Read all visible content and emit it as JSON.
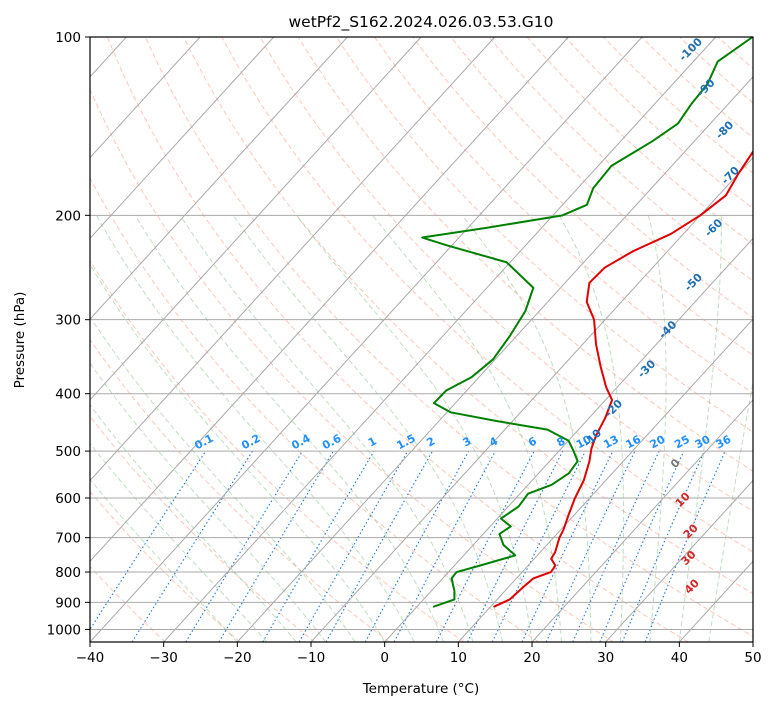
{
  "chart_data": {
    "type": "line",
    "chart_kind": "skew-T log-p diagram",
    "title": "wetPf2_S162.2024.026.03.53.G10",
    "xlabel": "Temperature (°C)",
    "ylabel": "Pressure (hPa)",
    "xlim": [
      -40,
      50
    ],
    "ylim": [
      1050,
      100
    ],
    "y_scale": "log",
    "grid": true,
    "x_ticks": [
      -40,
      -30,
      -20,
      -10,
      0,
      10,
      20,
      30,
      40,
      50
    ],
    "x_tick_labels": [
      "−40",
      "−30",
      "−20",
      "−10",
      "0",
      "10",
      "20",
      "30",
      "40",
      "50"
    ],
    "y_ticks": [
      100,
      200,
      300,
      400,
      500,
      600,
      700,
      800,
      900,
      1000
    ],
    "y_tick_labels": [
      "100",
      "200",
      "300",
      "400",
      "500",
      "600",
      "700",
      "800",
      "900",
      "1000"
    ],
    "dry_adiabat_labels": [
      "-100",
      "-90",
      "-80",
      "-70",
      "-60",
      "-50",
      "-40",
      "-30",
      "-20",
      "-10",
      "0",
      "10",
      "20",
      "30",
      "40"
    ],
    "mixing_ratio_labels": [
      "0.1",
      "0.2",
      "0.4",
      "0.6",
      "1",
      "1.5",
      "2",
      "3",
      "4",
      "6",
      "8",
      "10",
      "13",
      "16",
      "20",
      "25",
      "30",
      "36"
    ],
    "series": [
      {
        "key": "temperature",
        "color": "#e00000",
        "points": [
          {
            "p": 915,
            "t": 10.5
          },
          {
            "p": 890,
            "t": 11.7
          },
          {
            "p": 850,
            "t": 12.0
          },
          {
            "p": 820,
            "t": 12.3
          },
          {
            "p": 800,
            "t": 13.9
          },
          {
            "p": 780,
            "t": 13.7
          },
          {
            "p": 760,
            "t": 12.3
          },
          {
            "p": 740,
            "t": 12.0
          },
          {
            "p": 700,
            "t": 10.8
          },
          {
            "p": 680,
            "t": 10.4
          },
          {
            "p": 640,
            "t": 9.2
          },
          {
            "p": 600,
            "t": 8.0
          },
          {
            "p": 560,
            "t": 7.0
          },
          {
            "p": 520,
            "t": 5.4
          },
          {
            "p": 495,
            "t": 4.1
          },
          {
            "p": 470,
            "t": 3.1
          },
          {
            "p": 440,
            "t": 2.2
          },
          {
            "p": 410,
            "t": 0.9
          },
          {
            "p": 390,
            "t": -1.5
          },
          {
            "p": 360,
            "t": -4.8
          },
          {
            "p": 330,
            "t": -8.2
          },
          {
            "p": 300,
            "t": -11.5
          },
          {
            "p": 280,
            "t": -14.7
          },
          {
            "p": 260,
            "t": -16.7
          },
          {
            "p": 245,
            "t": -16.5
          },
          {
            "p": 230,
            "t": -14.7
          },
          {
            "p": 215,
            "t": -11.7
          },
          {
            "p": 200,
            "t": -10.0
          },
          {
            "p": 185,
            "t": -9.0
          },
          {
            "p": 170,
            "t": -10.0
          },
          {
            "p": 155,
            "t": -10.8
          },
          {
            "p": 140,
            "t": -11.1
          },
          {
            "p": 130,
            "t": -12.6
          },
          {
            "p": 120,
            "t": -14.0
          },
          {
            "p": 110,
            "t": -16.3
          },
          {
            "p": 100,
            "t": -17.5
          }
        ]
      },
      {
        "key": "dewpoint",
        "color": "#008000",
        "points": [
          {
            "p": 915,
            "t": 2.3
          },
          {
            "p": 890,
            "t": 4.2
          },
          {
            "p": 860,
            "t": 3.1
          },
          {
            "p": 820,
            "t": 1.2
          },
          {
            "p": 800,
            "t": 1.1
          },
          {
            "p": 780,
            "t": 3.5
          },
          {
            "p": 750,
            "t": 7.0
          },
          {
            "p": 720,
            "t": 4.1
          },
          {
            "p": 690,
            "t": 2.2
          },
          {
            "p": 670,
            "t": 2.8
          },
          {
            "p": 650,
            "t": 0.5
          },
          {
            "p": 620,
            "t": 1.4
          },
          {
            "p": 590,
            "t": 1.1
          },
          {
            "p": 570,
            "t": 3.2
          },
          {
            "p": 545,
            "t": 4.1
          },
          {
            "p": 520,
            "t": 3.8
          },
          {
            "p": 500,
            "t": 2.0
          },
          {
            "p": 480,
            "t": 0.0
          },
          {
            "p": 460,
            "t": -4.2
          },
          {
            "p": 445,
            "t": -12.1
          },
          {
            "p": 430,
            "t": -19.5
          },
          {
            "p": 415,
            "t": -22.9
          },
          {
            "p": 395,
            "t": -22.8
          },
          {
            "p": 375,
            "t": -21.0
          },
          {
            "p": 350,
            "t": -20.3
          },
          {
            "p": 320,
            "t": -20.9
          },
          {
            "p": 290,
            "t": -21.9
          },
          {
            "p": 265,
            "t": -23.7
          },
          {
            "p": 240,
            "t": -30.5
          },
          {
            "p": 225,
            "t": -40.5
          },
          {
            "p": 218,
            "t": -45.0
          },
          {
            "p": 210,
            "t": -37.5
          },
          {
            "p": 200,
            "t": -28.7
          },
          {
            "p": 192,
            "t": -26.7
          },
          {
            "p": 180,
            "t": -27.9
          },
          {
            "p": 165,
            "t": -28.2
          },
          {
            "p": 150,
            "t": -25.7
          },
          {
            "p": 140,
            "t": -24.4
          },
          {
            "p": 130,
            "t": -25.0
          },
          {
            "p": 120,
            "t": -25.3
          },
          {
            "p": 110,
            "t": -26.7
          },
          {
            "p": 100,
            "t": -25.0
          }
        ]
      }
    ]
  }
}
